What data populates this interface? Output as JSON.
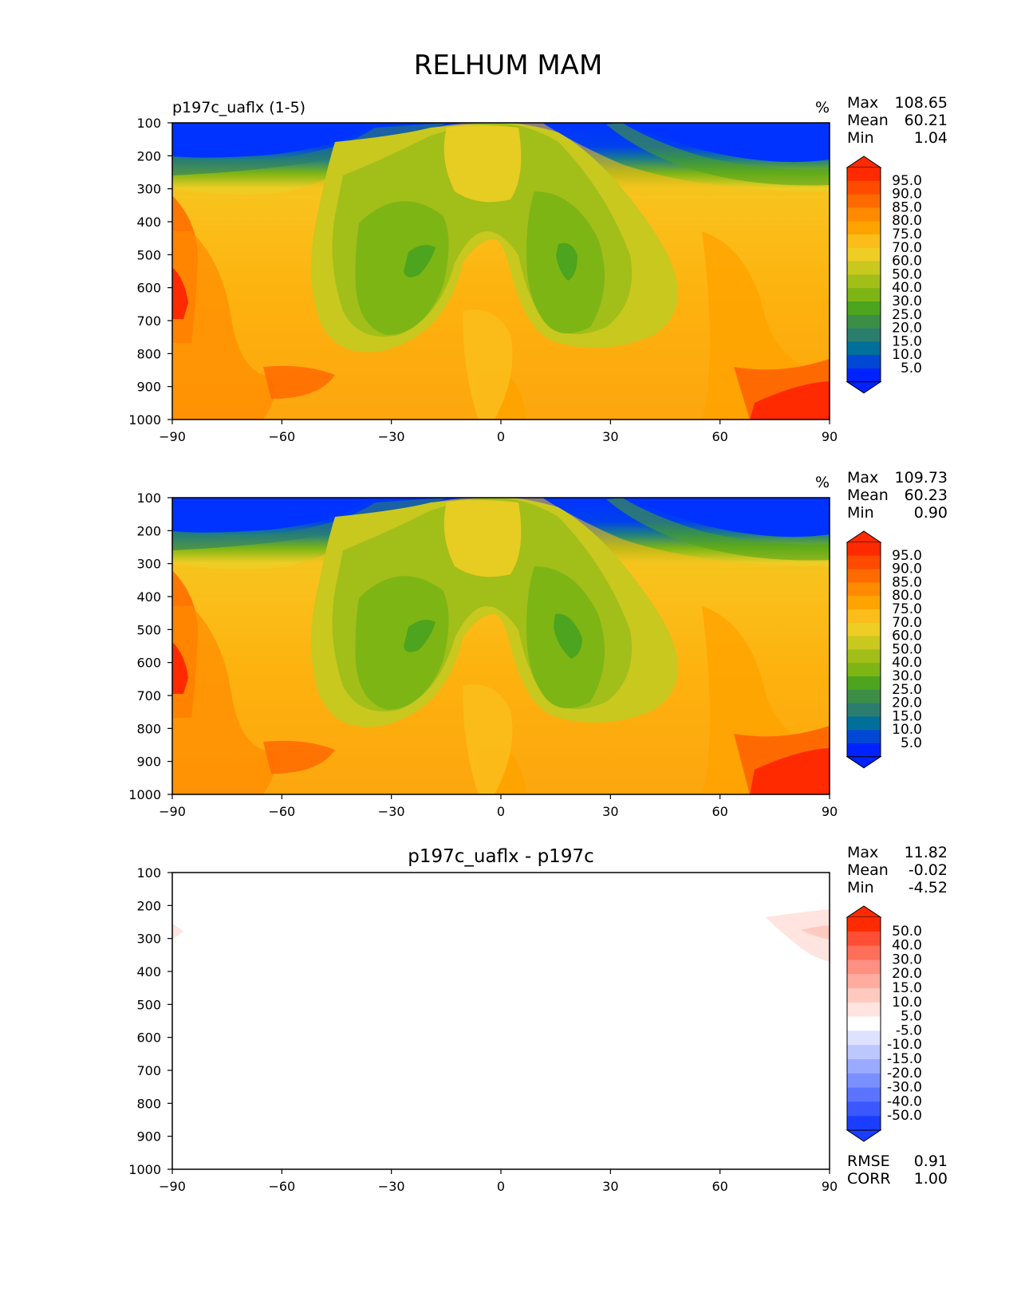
{
  "page": {
    "title": "RELHUM MAM"
  },
  "chart_data": [
    {
      "type": "heatmap",
      "title": "p197c_uaflx (1-5)",
      "units": "%",
      "stats": [
        {
          "label": "Max",
          "value": "108.65"
        },
        {
          "label": "Mean",
          "value": "60.21"
        },
        {
          "label": "Min",
          "value": "1.04"
        }
      ],
      "x_ticks": [
        -90,
        -60,
        -30,
        0,
        30,
        60,
        90
      ],
      "y_ticks": [
        100,
        200,
        300,
        400,
        500,
        600,
        700,
        800,
        900,
        1000
      ],
      "xlim": [
        -90,
        90
      ],
      "ylim": [
        1000,
        100
      ],
      "levels": [
        "95.0",
        "90.0",
        "85.0",
        "80.0",
        "75.0",
        "70.0",
        "60.0",
        "50.0",
        "40.0",
        "30.0",
        "25.0",
        "20.0",
        "15.0",
        "10.0",
        "5.0"
      ],
      "colors": [
        "#ff2a00",
        "#ff4b00",
        "#ff6a00",
        "#ff8a00",
        "#ffa300",
        "#fbbd1a",
        "#eecd24",
        "#c8c81f",
        "#a2be19",
        "#7db514",
        "#4da41e",
        "#3c8e47",
        "#2b7d6e",
        "#00709a",
        "#0047d4",
        "#0022ff"
      ],
      "masked_region": [
        [
          -90,
          650
        ],
        [
          -86,
          650
        ],
        [
          -85,
          870
        ],
        [
          -54,
          870
        ],
        [
          -54,
          1000
        ],
        [
          -90,
          1000
        ]
      ]
    },
    {
      "type": "heatmap",
      "title": "",
      "units": "%",
      "stats": [
        {
          "label": "Max",
          "value": "109.73"
        },
        {
          "label": "Mean",
          "value": "60.23"
        },
        {
          "label": "Min",
          "value": "0.90"
        }
      ],
      "x_ticks": [
        -90,
        -60,
        -30,
        0,
        30,
        60,
        90
      ],
      "y_ticks": [
        100,
        200,
        300,
        400,
        500,
        600,
        700,
        800,
        900,
        1000
      ],
      "xlim": [
        -90,
        90
      ],
      "ylim": [
        1000,
        100
      ],
      "levels": [
        "95.0",
        "90.0",
        "85.0",
        "80.0",
        "75.0",
        "70.0",
        "60.0",
        "50.0",
        "40.0",
        "30.0",
        "25.0",
        "20.0",
        "15.0",
        "10.0",
        "5.0"
      ],
      "colors": [
        "#ff2a00",
        "#ff4b00",
        "#ff6a00",
        "#ff8a00",
        "#ffa300",
        "#fbbd1a",
        "#eecd24",
        "#c8c81f",
        "#a2be19",
        "#7db514",
        "#4da41e",
        "#3c8e47",
        "#2b7d6e",
        "#00709a",
        "#0047d4",
        "#0022ff"
      ],
      "masked_region": [
        [
          -90,
          650
        ],
        [
          -86,
          650
        ],
        [
          -85,
          870
        ],
        [
          -54,
          870
        ],
        [
          -54,
          1000
        ],
        [
          -90,
          1000
        ]
      ]
    },
    {
      "type": "heatmap",
      "title": "p197c_uaflx - p197c",
      "units": "",
      "stats": [
        {
          "label": "Max",
          "value": "11.82"
        },
        {
          "label": "Mean",
          "value": "-0.02"
        },
        {
          "label": "Min",
          "value": "-4.52"
        }
      ],
      "footer_stats": [
        {
          "label": "RMSE",
          "value": "0.91"
        },
        {
          "label": "CORR",
          "value": "1.00"
        }
      ],
      "x_ticks": [
        -90,
        -60,
        -30,
        0,
        30,
        60,
        90
      ],
      "y_ticks": [
        100,
        200,
        300,
        400,
        500,
        600,
        700,
        800,
        900,
        1000
      ],
      "xlim": [
        -90,
        90
      ],
      "ylim": [
        1000,
        100
      ],
      "levels": [
        "50.0",
        "40.0",
        "30.0",
        "20.0",
        "15.0",
        "10.0",
        "5.0",
        "-5.0",
        "-10.0",
        "-15.0",
        "-20.0",
        "-30.0",
        "-40.0",
        "-50.0"
      ],
      "colors": [
        "#ff2a00",
        "#ff4e33",
        "#ff6f59",
        "#ff8f80",
        "#ffaca0",
        "#ffc9c0",
        "#ffe4df",
        "#ffffff",
        "#dce2ff",
        "#bcc7ff",
        "#9aabff",
        "#7b90ff",
        "#5b74ff",
        "#3b58ff",
        "#1a3dff"
      ]
    }
  ]
}
